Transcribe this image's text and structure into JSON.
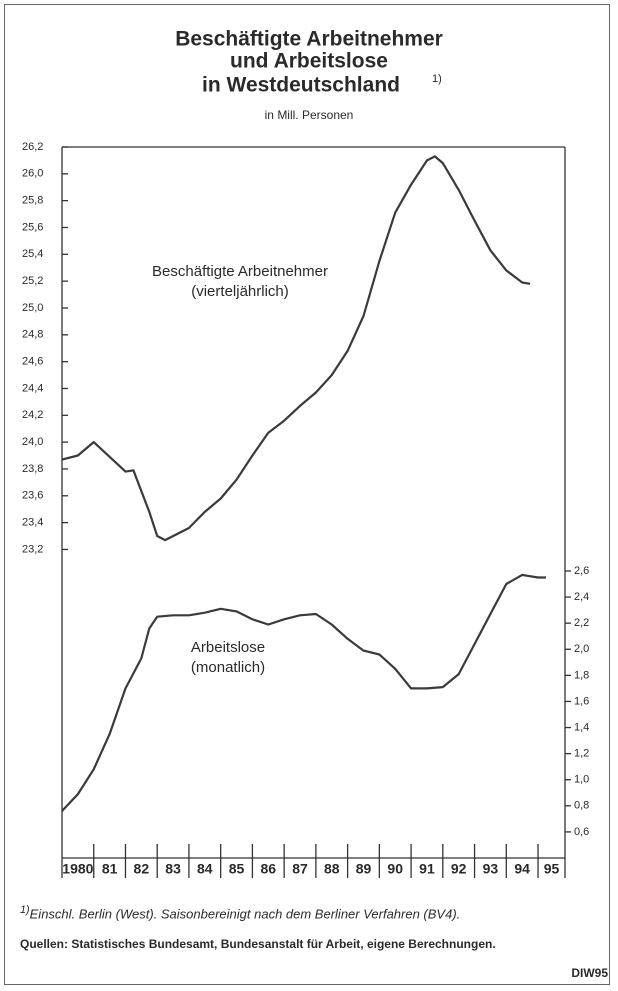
{
  "chart_data": {
    "type": "line",
    "title": [
      "Beschäftigte Arbeitnehmer",
      "und Arbeitslose",
      "in Westdeutschland"
    ],
    "title_note": "1)",
    "subtitle": "in Mill. Personen",
    "xlim": [
      1980,
      1995.85
    ],
    "xticks": [
      {
        "value": 1980,
        "label": "1980"
      },
      {
        "value": 1981,
        "label": "81"
      },
      {
        "value": 1982,
        "label": "82"
      },
      {
        "value": 1983,
        "label": "83"
      },
      {
        "value": 1984,
        "label": "84"
      },
      {
        "value": 1985,
        "label": "85"
      },
      {
        "value": 1986,
        "label": "86"
      },
      {
        "value": 1987,
        "label": "87"
      },
      {
        "value": 1988,
        "label": "88"
      },
      {
        "value": 1989,
        "label": "89"
      },
      {
        "value": 1990,
        "label": "90"
      },
      {
        "value": 1991,
        "label": "91"
      },
      {
        "value": 1992,
        "label": "92"
      },
      {
        "value": 1993,
        "label": "93"
      },
      {
        "value": 1994,
        "label": "94"
      },
      {
        "value": 1995,
        "label": "95"
      }
    ],
    "ylim": [
      20.9,
      26.2
    ],
    "yticks": [
      {
        "value": 26.2,
        "label": "26,2"
      },
      {
        "value": 26.0,
        "label": "26,0"
      },
      {
        "value": 25.8,
        "label": "25,8"
      },
      {
        "value": 25.6,
        "label": "25,6"
      },
      {
        "value": 25.4,
        "label": "25,4"
      },
      {
        "value": 25.2,
        "label": "25,2"
      },
      {
        "value": 25.0,
        "label": "25,0"
      },
      {
        "value": 24.8,
        "label": "24,8"
      },
      {
        "value": 24.6,
        "label": "24,6"
      },
      {
        "value": 24.4,
        "label": "24,4"
      },
      {
        "value": 24.2,
        "label": "24,2"
      },
      {
        "value": 24.0,
        "label": "24,0"
      },
      {
        "value": 23.8,
        "label": "23,8"
      },
      {
        "value": 23.6,
        "label": "23,6"
      },
      {
        "value": 23.4,
        "label": "23,4"
      },
      {
        "value": 23.2,
        "label": "23,2"
      }
    ],
    "y2lim": [
      0.4,
      5.85
    ],
    "y2ticks": [
      {
        "value": 2.6,
        "label": "2,6"
      },
      {
        "value": 2.4,
        "label": "2,4"
      },
      {
        "value": 2.2,
        "label": "2,2"
      },
      {
        "value": 2.0,
        "label": "2,0"
      },
      {
        "value": 1.8,
        "label": "1,8"
      },
      {
        "value": 1.6,
        "label": "1,6"
      },
      {
        "value": 1.4,
        "label": "1,4"
      },
      {
        "value": 1.2,
        "label": "1,2"
      },
      {
        "value": 1.0,
        "label": "1,0"
      },
      {
        "value": 0.8,
        "label": "0,8"
      },
      {
        "value": 0.6,
        "label": "0,6"
      }
    ],
    "series": [
      {
        "name": "Beschäftigte Arbeitnehmer",
        "frequency": "(vierteljährlich)",
        "color": "#3a3a3a",
        "x": [
          1980,
          1980.5,
          1981,
          1982,
          1982.25,
          1982.75,
          1983,
          1983.25,
          1984,
          1984.5,
          1985,
          1985.5,
          1986,
          1986.5,
          1987,
          1987.5,
          1988,
          1988.5,
          1989,
          1989.5,
          1990,
          1990.5,
          1991,
          1991.5,
          1991.75,
          1992,
          1992.5,
          1993,
          1993.5,
          1994,
          1994.5,
          1994.75
        ],
        "values": [
          23.87,
          23.9,
          24.0,
          23.78,
          23.79,
          23.48,
          23.3,
          23.27,
          23.36,
          23.48,
          23.58,
          23.72,
          23.9,
          24.07,
          24.16,
          24.27,
          24.37,
          24.5,
          24.68,
          24.94,
          25.35,
          25.71,
          25.92,
          26.1,
          26.13,
          26.08,
          25.88,
          25.65,
          25.43,
          25.28,
          25.19,
          25.18
        ]
      },
      {
        "name": "Arbeitslose",
        "frequency": "(monatlich)",
        "color": "#3a3a3a",
        "axis": "y2",
        "x": [
          1980,
          1980.5,
          1981,
          1981.5,
          1982,
          1982.5,
          1982.75,
          1983,
          1983.5,
          1984,
          1984.5,
          1985,
          1985.5,
          1986,
          1986.5,
          1987,
          1987.5,
          1988,
          1988.5,
          1989,
          1989.5,
          1990,
          1990.5,
          1991,
          1991.5,
          1992,
          1992.5,
          1993,
          1993.5,
          1994,
          1994.5,
          1995,
          1995.25
        ],
        "values": [
          0.76,
          0.89,
          1.08,
          1.35,
          1.7,
          1.93,
          2.16,
          2.25,
          2.26,
          2.26,
          2.28,
          2.31,
          2.29,
          2.23,
          2.19,
          2.23,
          2.26,
          2.27,
          2.19,
          2.08,
          1.99,
          1.96,
          1.85,
          1.7,
          1.7,
          1.71,
          1.81,
          2.04,
          2.27,
          2.5,
          2.57,
          2.55,
          2.55
        ]
      }
    ],
    "footnote": {
      "marker": "1)",
      "text": "Einschl. Berlin (West). Saisonbereinigt nach dem Berliner Verfahren (BV4)."
    },
    "sources": "Quellen: Statistisches Bundesamt, Bundesanstalt für Arbeit, eigene Berechnungen.",
    "credit": "DIW95"
  }
}
